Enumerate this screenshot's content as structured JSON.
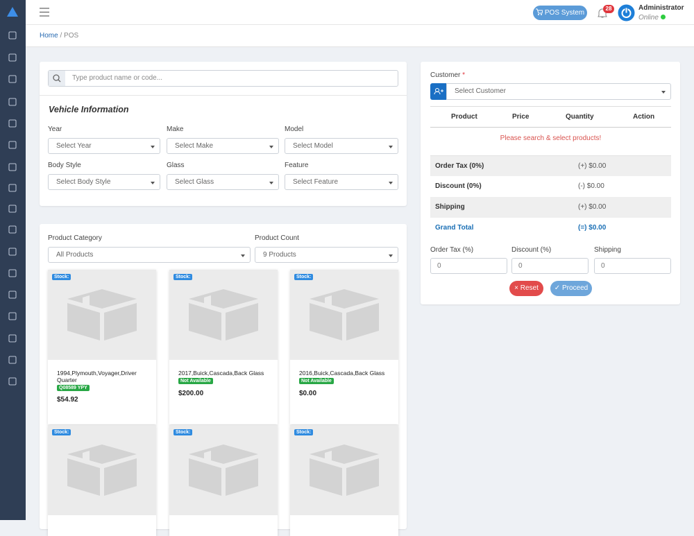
{
  "header": {
    "pos_button": "POS System",
    "notification_count": "28",
    "user_name": "Administrator",
    "user_status": "Online"
  },
  "breadcrumb": {
    "items": [
      "Home",
      "POS"
    ],
    "separator": "/"
  },
  "search": {
    "placeholder": "Type product name or code..."
  },
  "vehicle": {
    "title": "Vehicle Information",
    "fields": [
      {
        "label": "Year",
        "placeholder": "Select Year"
      },
      {
        "label": "Make",
        "placeholder": "Select Make"
      },
      {
        "label": "Model",
        "placeholder": "Select Model"
      },
      {
        "label": "Body Style",
        "placeholder": "Select Body Style"
      },
      {
        "label": "Glass",
        "placeholder": "Select Glass"
      },
      {
        "label": "Feature",
        "placeholder": "Select Feature"
      }
    ]
  },
  "filters": [
    {
      "label": "Product Category",
      "value": "All Products"
    },
    {
      "label": "Product Count",
      "value": "9 Products"
    }
  ],
  "products": [
    {
      "stock_badge": "Stock:",
      "name": "1994,Plymouth,Voyager,Driver Quarter",
      "badge": "Q08589 YPY",
      "price": "$54.92"
    },
    {
      "stock_badge": "Stock:",
      "name": "2017,Buick,Cascada,Back Glass",
      "badge": "Not Available",
      "price": "$200.00"
    },
    {
      "stock_badge": "Stock:",
      "name": "2016,Buick,Cascada,Back Glass",
      "badge": "Not Available",
      "price": "$0.00"
    },
    {
      "stock_badge": "Stock:"
    },
    {
      "stock_badge": "Stock:"
    },
    {
      "stock_badge": "Stock:"
    }
  ],
  "customer": {
    "label": "Customer",
    "required": "*",
    "placeholder": "Select Customer"
  },
  "table": {
    "headers": [
      "Product",
      "Price",
      "Quantity",
      "Action"
    ],
    "empty_message": "Please search & select products!"
  },
  "summary": [
    {
      "label": "Order Tax (0%)",
      "value": "(+) $0.00"
    },
    {
      "label": "Discount (0%)",
      "value": "(-) $0.00"
    },
    {
      "label": "Shipping",
      "value": "(+) $0.00"
    },
    {
      "label": "Grand Total",
      "value": "(=) $0.00"
    }
  ],
  "inputs": [
    {
      "label": "Order Tax (%)",
      "value": "0"
    },
    {
      "label": "Discount (%)",
      "value": "0"
    },
    {
      "label": "Shipping",
      "value": "0"
    }
  ],
  "buttons": {
    "reset": "Reset",
    "proceed": "Proceed"
  }
}
